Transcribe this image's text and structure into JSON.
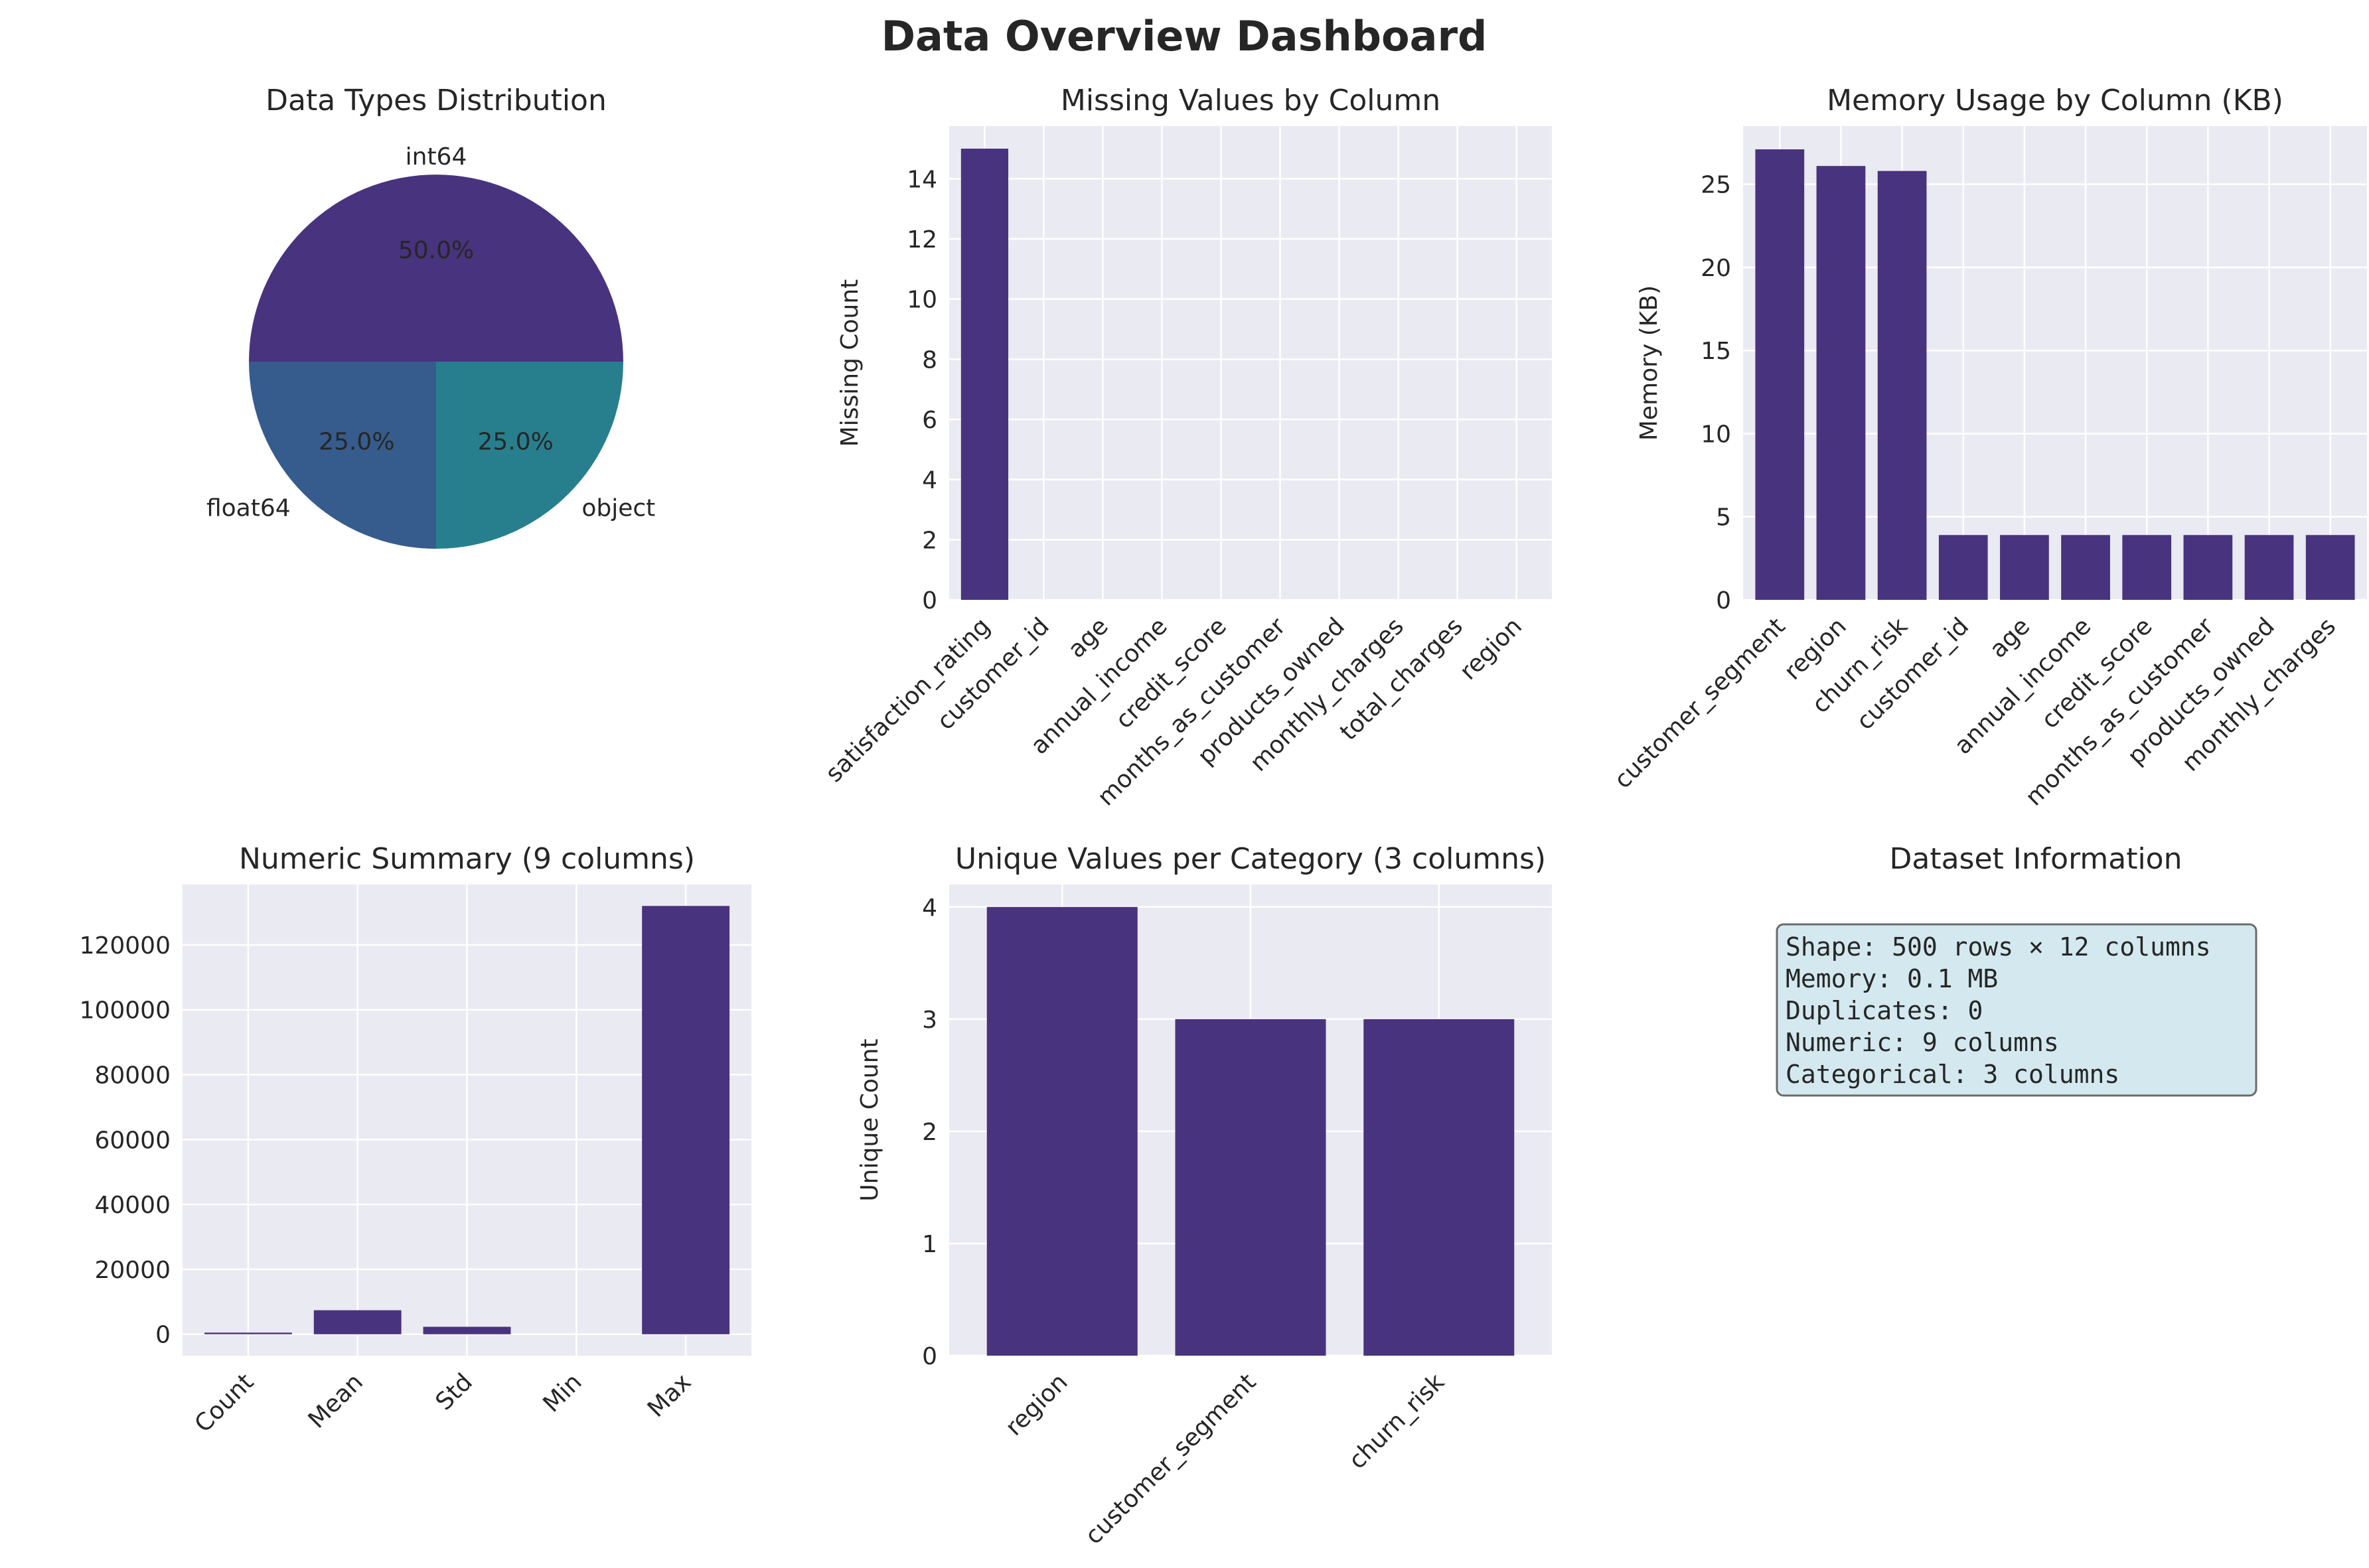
{
  "title": "Data Overview Dashboard",
  "colors": {
    "bar": "#48337e",
    "panel_bg": "#eaeaf2",
    "grid": "#ffffff",
    "pie": [
      "#48337e",
      "#365c8d",
      "#277f8e"
    ],
    "info_box_bg": "#d3e9ef",
    "info_box_border": "#6b6b6b"
  },
  "chart_data": [
    {
      "type": "pie",
      "title": "Data Types Distribution",
      "labels": [
        "int64",
        "float64",
        "object"
      ],
      "values": [
        50.0,
        25.0,
        25.0
      ],
      "pct_labels": [
        "50.0%",
        "25.0%",
        "25.0%"
      ]
    },
    {
      "type": "bar",
      "title": "Missing Values by Column",
      "xlabel": "",
      "ylabel": "Missing Count",
      "categories": [
        "satisfaction_rating",
        "customer_id",
        "age",
        "annual_income",
        "credit_score",
        "months_as_customer",
        "products_owned",
        "monthly_charges",
        "total_charges",
        "region"
      ],
      "values": [
        15,
        0,
        0,
        0,
        0,
        0,
        0,
        0,
        0,
        0
      ],
      "ylim": [
        0,
        15.75
      ],
      "yticks": [
        0,
        2,
        4,
        6,
        8,
        10,
        12,
        14
      ],
      "ytick_labels": [
        "0",
        "2",
        "4",
        "6",
        "8",
        "10",
        "12",
        "14"
      ],
      "grid": true
    },
    {
      "type": "bar",
      "title": "Memory Usage by Column (KB)",
      "xlabel": "",
      "ylabel": "Memory (KB)",
      "categories": [
        "customer_segment",
        "region",
        "churn_risk",
        "customer_id",
        "age",
        "annual_income",
        "credit_score",
        "months_as_customer",
        "products_owned",
        "monthly_charges"
      ],
      "values": [
        27.1,
        26.1,
        25.8,
        3.9,
        3.9,
        3.9,
        3.9,
        3.9,
        3.9,
        3.9
      ],
      "ylim": [
        0,
        28.5
      ],
      "yticks": [
        0,
        5,
        10,
        15,
        20,
        25
      ],
      "ytick_labels": [
        "0",
        "5",
        "10",
        "15",
        "20",
        "25"
      ],
      "grid": true
    },
    {
      "type": "bar",
      "title": "Numeric Summary (9 columns)",
      "xlabel": "",
      "ylabel": "",
      "categories": [
        "Count",
        "Mean",
        "Std",
        "Min",
        "Max"
      ],
      "values": [
        500,
        7400,
        2300,
        0,
        132000
      ],
      "ylim": [
        -6600,
        138600
      ],
      "yticks": [
        0,
        20000,
        40000,
        60000,
        80000,
        100000,
        120000
      ],
      "ytick_labels": [
        "0",
        "20000",
        "40000",
        "60000",
        "80000",
        "100000",
        "120000"
      ],
      "grid": true
    },
    {
      "type": "bar",
      "title": "Unique Values per Category (3 columns)",
      "xlabel": "",
      "ylabel": "Unique Count",
      "categories": [
        "region",
        "customer_segment",
        "churn_risk"
      ],
      "values": [
        4,
        3,
        3
      ],
      "ylim": [
        0,
        4.2
      ],
      "yticks": [
        0,
        1,
        2,
        3,
        4
      ],
      "ytick_labels": [
        "0",
        "1",
        "2",
        "3",
        "4"
      ],
      "grid": true
    },
    {
      "type": "table",
      "title": "Dataset Information",
      "lines": [
        "Shape: 500 rows × 12 columns",
        "Memory: 0.1 MB",
        "Duplicates: 0",
        "Numeric: 9 columns",
        "Categorical: 3 columns"
      ]
    }
  ]
}
